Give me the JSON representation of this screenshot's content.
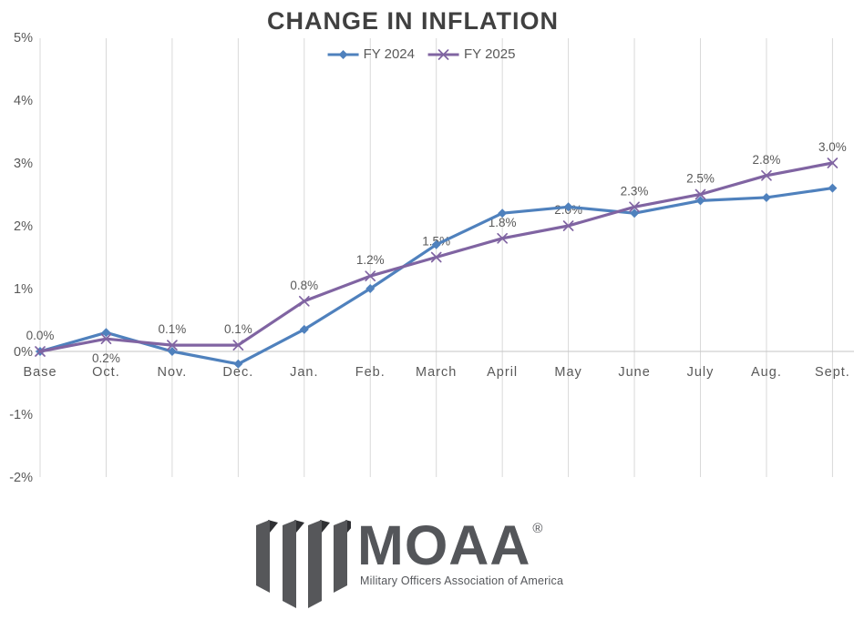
{
  "page": {
    "background": "#FFFFFF"
  },
  "chart_data": {
    "type": "line",
    "title": "CHANGE IN INFLATION",
    "categories": [
      "Base",
      "Oct.",
      "Nov.",
      "Dec.",
      "Jan.",
      "Feb.",
      "March",
      "April",
      "May",
      "June",
      "July",
      "Aug.",
      "Sept."
    ],
    "series": [
      {
        "name": "FY 2024",
        "color": "#4F81BD",
        "marker": "diamond",
        "values": [
          0.0,
          0.3,
          0.0,
          -0.2,
          0.35,
          1.0,
          1.7,
          2.2,
          2.3,
          2.2,
          2.4,
          2.45,
          2.6
        ]
      },
      {
        "name": "FY 2025",
        "color": "#8064A2",
        "marker": "x",
        "values": [
          0.0,
          0.2,
          0.1,
          0.1,
          0.8,
          1.2,
          1.5,
          1.8,
          2.0,
          2.3,
          2.5,
          2.8,
          3.0
        ],
        "data_labels": [
          "0.0%",
          "0.2%",
          "0.1%",
          "0.1%",
          "0.8%",
          "1.2%",
          "1.5%",
          "1.8%",
          "2.0%",
          "2.3%",
          "2.5%",
          "2.8%",
          "3.0%"
        ]
      }
    ],
    "ylim": [
      -2,
      5
    ],
    "ytick_labels": [
      "5%",
      "4%",
      "3%",
      "2%",
      "1%",
      "0%",
      "-1%",
      "-2%"
    ],
    "ytick_values": [
      5,
      4,
      3,
      2,
      1,
      0,
      -1,
      -2
    ],
    "grid": "vertical-only",
    "gridline_color": "#D9D9D9",
    "axis_line_color": "#C6C6C6",
    "tick_label_color": "#595959",
    "data_label_color": "#595959",
    "legend_position": "top-center",
    "label_below_indices": [
      1
    ]
  },
  "logo": {
    "text": "MOAA",
    "registered_mark": "®",
    "tagline": "Military Officers Association of America",
    "color": "#54565A"
  }
}
